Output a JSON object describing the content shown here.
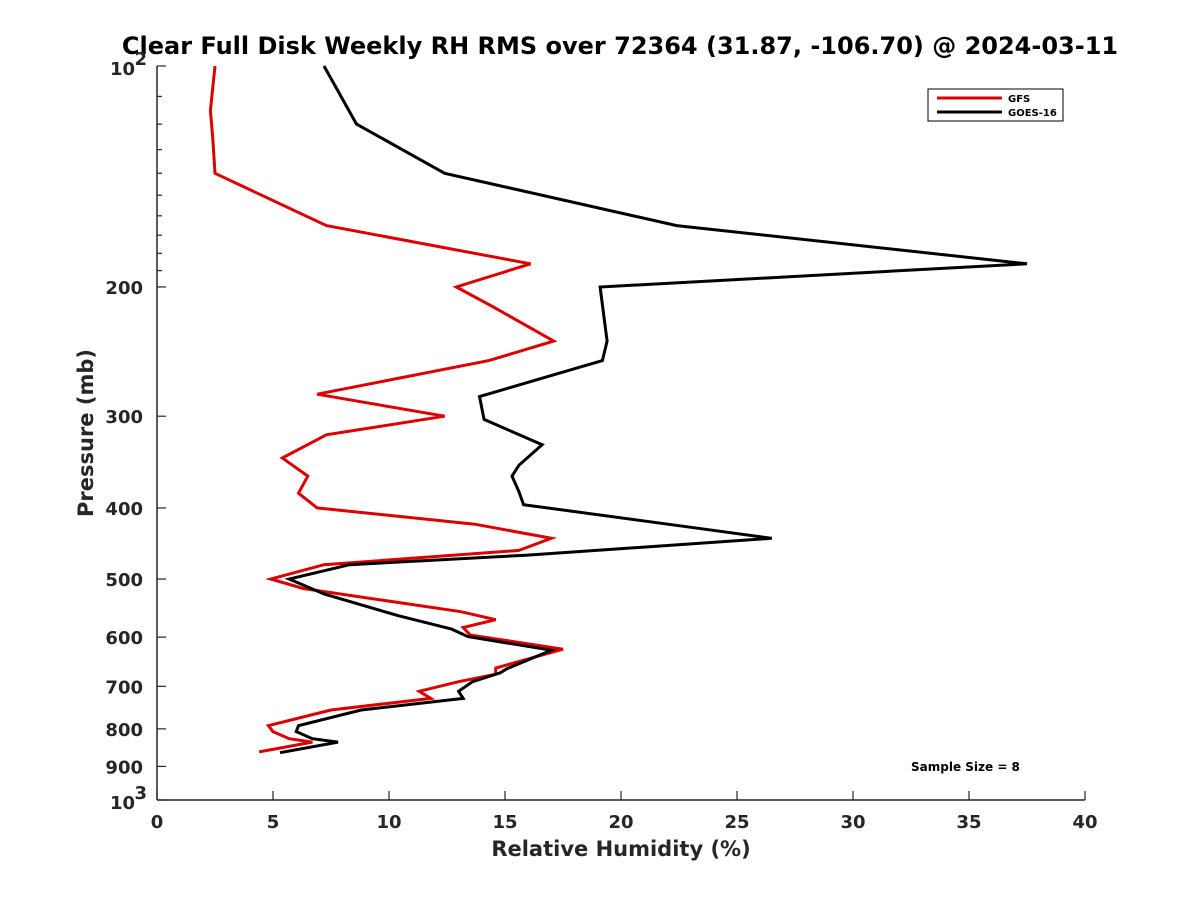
{
  "chart_data": {
    "type": "line",
    "title": "Clear Full Disk Weekly RH RMS over 72364 (31.87, -106.70) @ 2024-03-11",
    "xlabel": "Relative Humidity (%)",
    "ylabel": "Pressure (mb)",
    "xlim": [
      0,
      40
    ],
    "ylim": [
      100,
      1000
    ],
    "yscale": "log",
    "yaxis_reversed": true,
    "x_ticks": [
      0,
      5,
      10,
      15,
      20,
      25,
      30,
      35,
      40
    ],
    "x_tick_labels": [
      "0",
      "5",
      "10",
      "15",
      "20",
      "25",
      "30",
      "35",
      "40"
    ],
    "y_ticks": [
      200,
      300,
      400,
      500,
      600,
      700,
      800,
      900
    ],
    "y_tick_labels": [
      "200",
      "300",
      "400",
      "500",
      "600",
      "700",
      "800",
      "900"
    ],
    "y_decade_labels": [
      {
        "value": 100,
        "base": "10",
        "exp": "2"
      },
      {
        "value": 1000,
        "base": "10",
        "exp": "3"
      }
    ],
    "grid": false,
    "legend_position": "top-right",
    "annotation": "Sample Size = 8",
    "series": [
      {
        "name": "GFS",
        "color": "#dd0000",
        "points": [
          [
            2.5,
            100
          ],
          [
            2.3,
            115
          ],
          [
            2.4,
            125
          ],
          [
            2.5,
            140
          ],
          [
            7.3,
            165
          ],
          [
            16.1,
            186
          ],
          [
            12.9,
            200
          ],
          [
            14.5,
            213
          ],
          [
            17.1,
            237
          ],
          [
            14.3,
            252
          ],
          [
            6.9,
            280
          ],
          [
            12.4,
            300
          ],
          [
            7.3,
            318
          ],
          [
            5.4,
            342
          ],
          [
            6.5,
            362
          ],
          [
            6.1,
            382
          ],
          [
            6.9,
            400
          ],
          [
            13.7,
            421
          ],
          [
            17.0,
            440
          ],
          [
            15.6,
            457
          ],
          [
            7.2,
            478
          ],
          [
            4.9,
            500
          ],
          [
            6.3,
            515
          ],
          [
            13.1,
            554
          ],
          [
            14.6,
            568
          ],
          [
            13.2,
            582
          ],
          [
            13.5,
            596
          ],
          [
            17.5,
            623
          ],
          [
            14.6,
            661
          ],
          [
            14.6,
            674
          ],
          [
            13.0,
            690
          ],
          [
            11.3,
            711
          ],
          [
            11.8,
            727
          ],
          [
            7.5,
            754
          ],
          [
            4.8,
            792
          ],
          [
            5.0,
            807
          ],
          [
            5.7,
            825
          ],
          [
            6.7,
            834
          ],
          [
            4.4,
            860
          ]
        ]
      },
      {
        "name": "GOES-16",
        "color": "#000000",
        "points": [
          [
            7.2,
            100
          ],
          [
            8.6,
            120
          ],
          [
            12.4,
            140
          ],
          [
            22.4,
            165
          ],
          [
            37.5,
            186
          ],
          [
            19.1,
            200
          ],
          [
            19.4,
            237
          ],
          [
            19.2,
            252
          ],
          [
            13.9,
            282
          ],
          [
            14.1,
            303
          ],
          [
            16.6,
            328
          ],
          [
            15.6,
            350
          ],
          [
            15.3,
            362
          ],
          [
            15.6,
            380
          ],
          [
            15.8,
            396
          ],
          [
            22.5,
            423
          ],
          [
            26.5,
            440
          ],
          [
            15.9,
            464
          ],
          [
            8.3,
            478
          ],
          [
            5.7,
            500
          ],
          [
            7.2,
            524
          ],
          [
            10.4,
            561
          ],
          [
            12.7,
            585
          ],
          [
            13.4,
            599
          ],
          [
            17.0,
            625
          ],
          [
            15.1,
            662
          ],
          [
            14.8,
            671
          ],
          [
            13.6,
            690
          ],
          [
            13.0,
            711
          ],
          [
            13.2,
            727
          ],
          [
            8.8,
            754
          ],
          [
            6.1,
            792
          ],
          [
            6.0,
            807
          ],
          [
            6.7,
            825
          ],
          [
            7.8,
            834
          ],
          [
            5.3,
            862
          ]
        ]
      }
    ]
  }
}
